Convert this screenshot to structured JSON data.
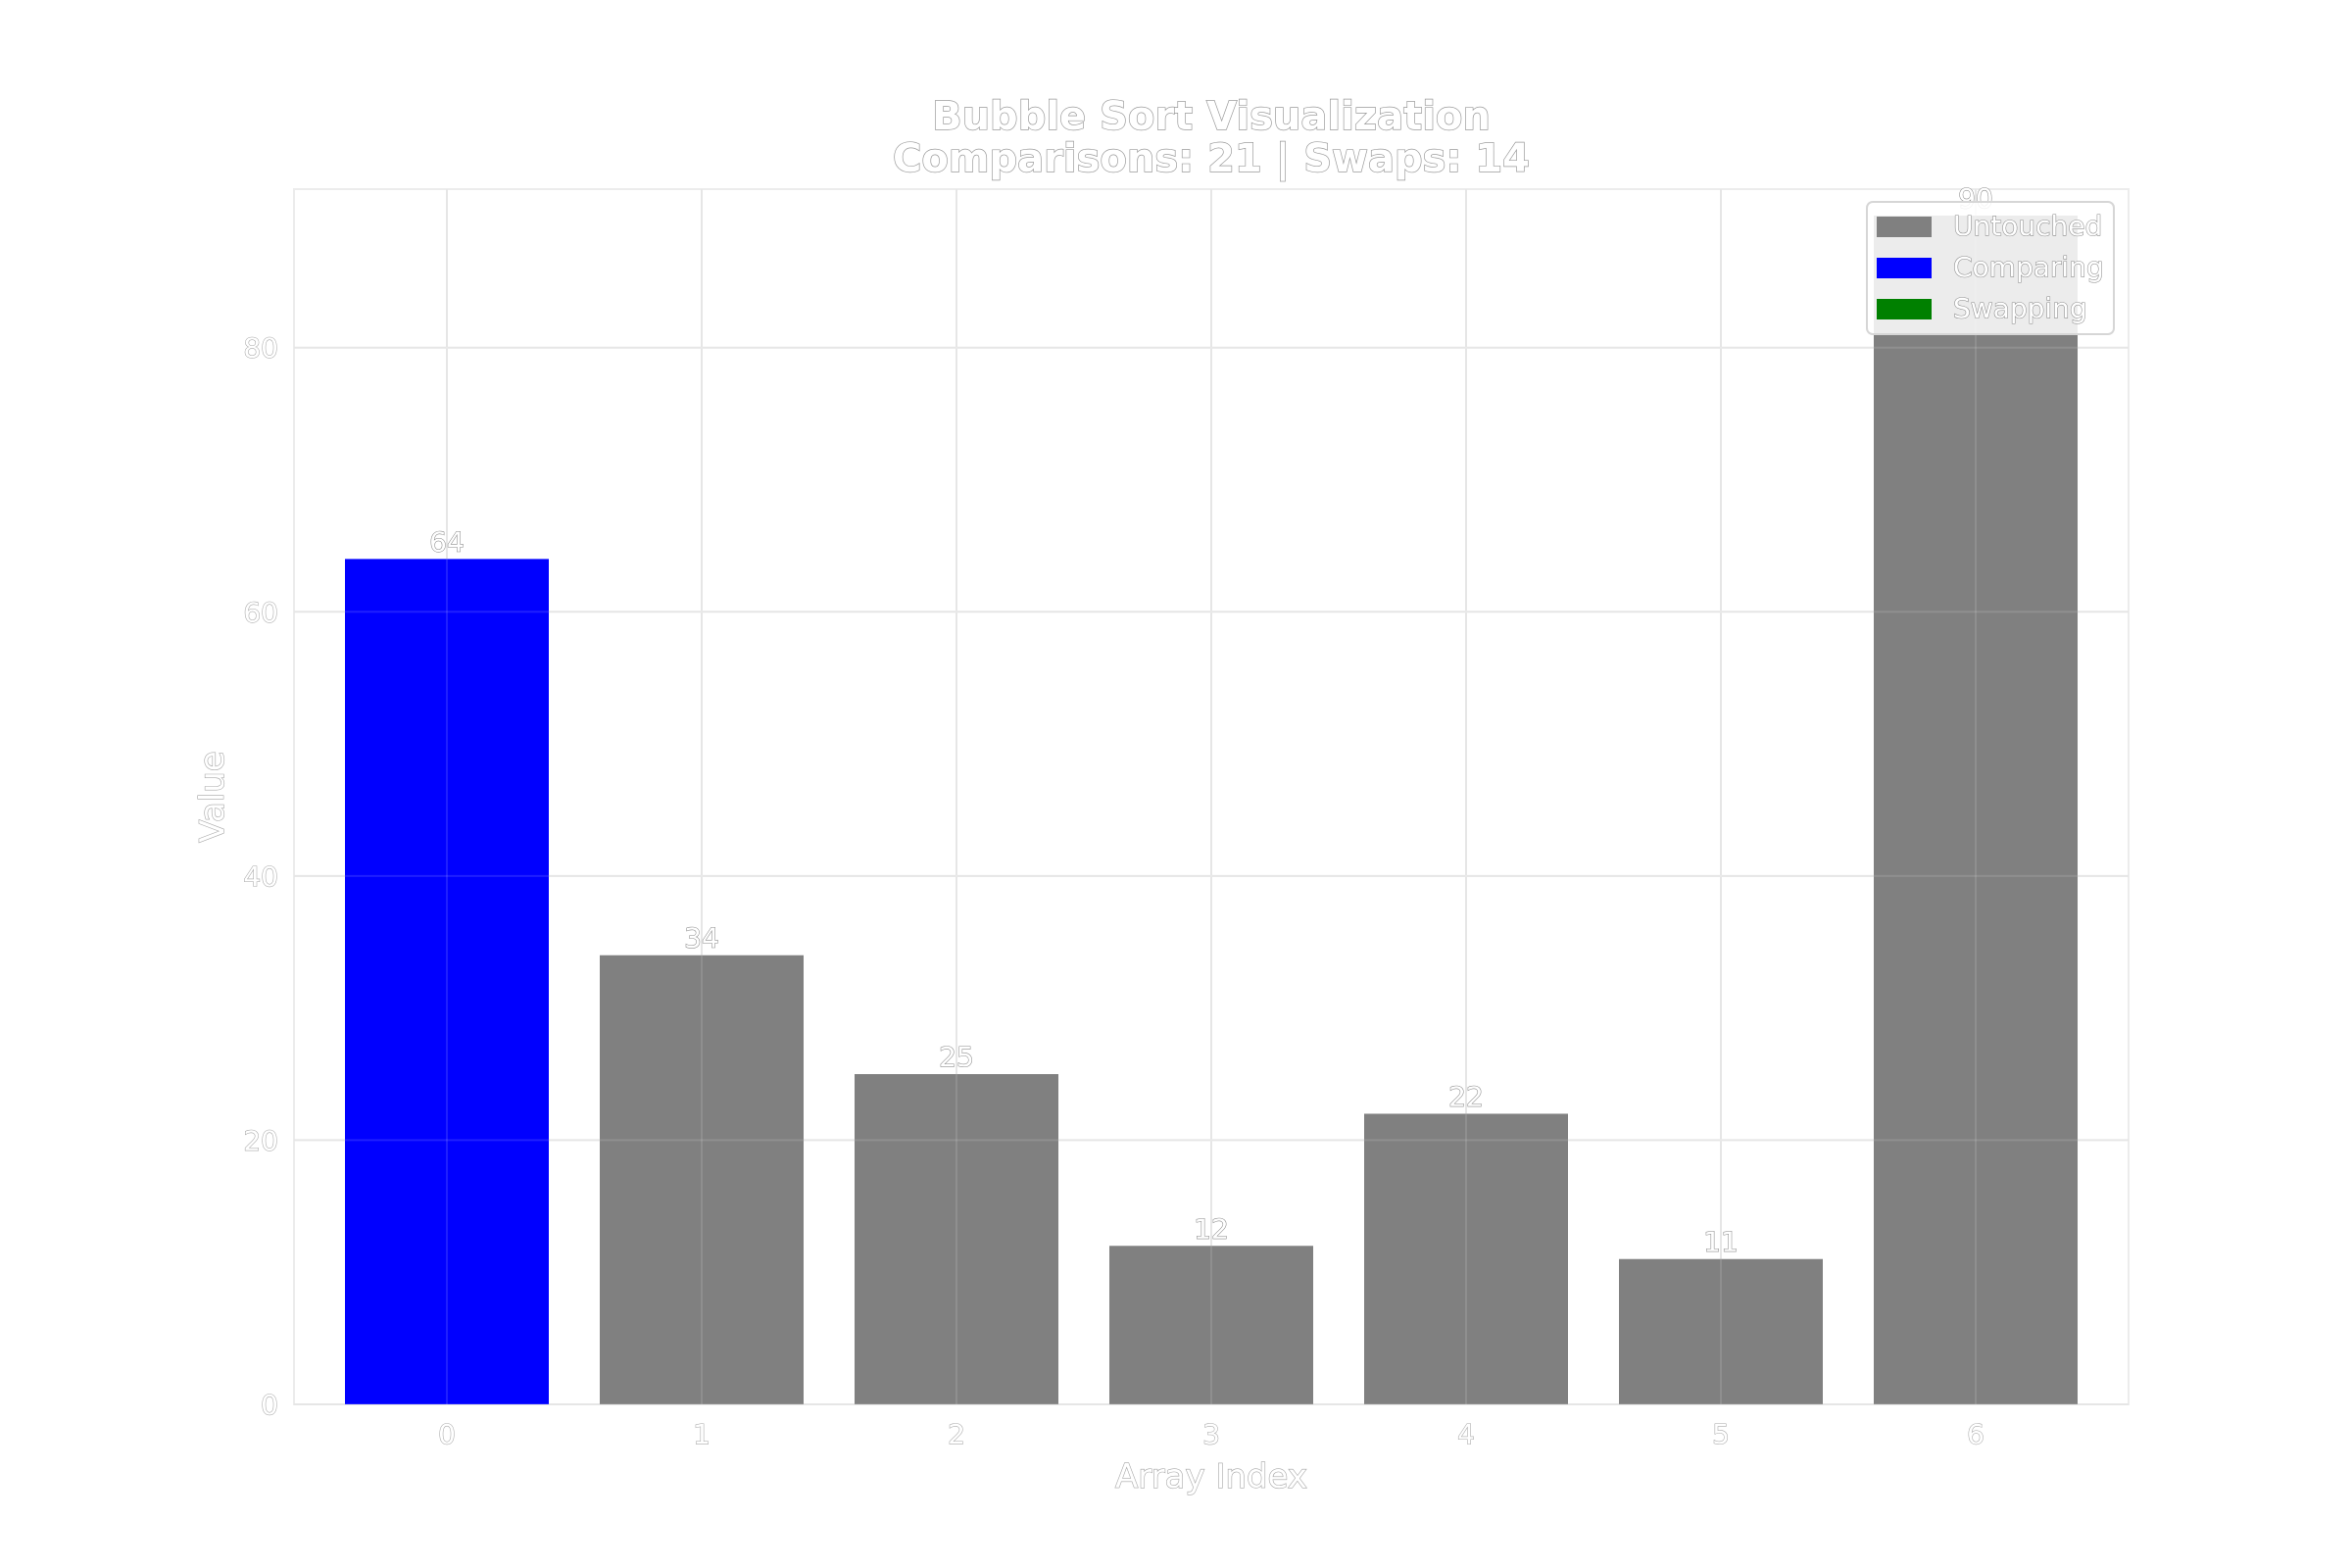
{
  "chart_data": {
    "type": "bar",
    "title": "Bubble Sort Visualization",
    "subtitle": "Comparisons: 21 | Swaps: 14",
    "xlabel": "Array Index",
    "ylabel": "Value",
    "categories": [
      "0",
      "1",
      "2",
      "3",
      "4",
      "5",
      "6"
    ],
    "values": [
      64,
      34,
      25,
      12,
      22,
      11,
      90
    ],
    "bar_states": [
      "comparing",
      "untouched",
      "untouched",
      "untouched",
      "untouched",
      "untouched",
      "untouched"
    ],
    "yticks": [
      0,
      20,
      40,
      60,
      80
    ],
    "ylim": [
      0,
      92
    ],
    "grid": true,
    "legend": {
      "placement": "top-right",
      "entries": [
        {
          "key": "untouched",
          "label": "Untouched",
          "color": "#808080"
        },
        {
          "key": "comparing",
          "label": "Comparing",
          "color": "#0000ff"
        },
        {
          "key": "swapping",
          "label": "Swapping",
          "color": "#008000"
        }
      ]
    }
  }
}
